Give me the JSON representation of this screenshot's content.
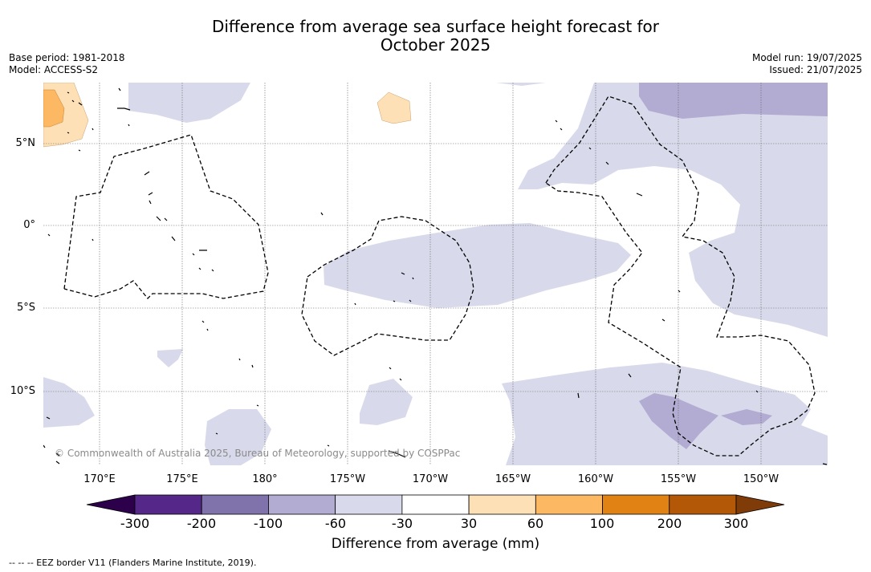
{
  "title": {
    "line1": "Difference from average sea surface height forecast for",
    "line2": "October 2025"
  },
  "meta_left": {
    "base_period": "Base period: 1981-2018",
    "model": "Model: ACCESS-S2"
  },
  "meta_right": {
    "model_run": "Model run: 19/07/2025",
    "issued": "Issued: 21/07/2025"
  },
  "map": {
    "lat_labels": [
      "5°N",
      "0°",
      "5°S",
      "10°S"
    ],
    "lon_labels": [
      "170°E",
      "175°E",
      "180°",
      "175°W",
      "170°W",
      "165°W",
      "160°W",
      "155°W",
      "150°W"
    ],
    "copyright": "© Commonwealth of Australia 2025, Bureau of Meteorology, supported by COSPPac"
  },
  "colorbar": {
    "title": "Difference from average (mm)",
    "ticks": [
      "-300",
      "-200",
      "-100",
      "-60",
      "-30",
      "30",
      "60",
      "100",
      "200",
      "300"
    ],
    "colors": {
      "below": "#2d004b",
      "bins": [
        "#542788",
        "#8073ac",
        "#b2abd2",
        "#d8daeb",
        "#ffffff",
        "#fee0b6",
        "#fdb863",
        "#e08214",
        "#b35806"
      ],
      "above": "#7f3b08"
    }
  },
  "legend_note": "--  --  -- EEZ border V11 (Flanders Marine Institute, 2019)."
}
